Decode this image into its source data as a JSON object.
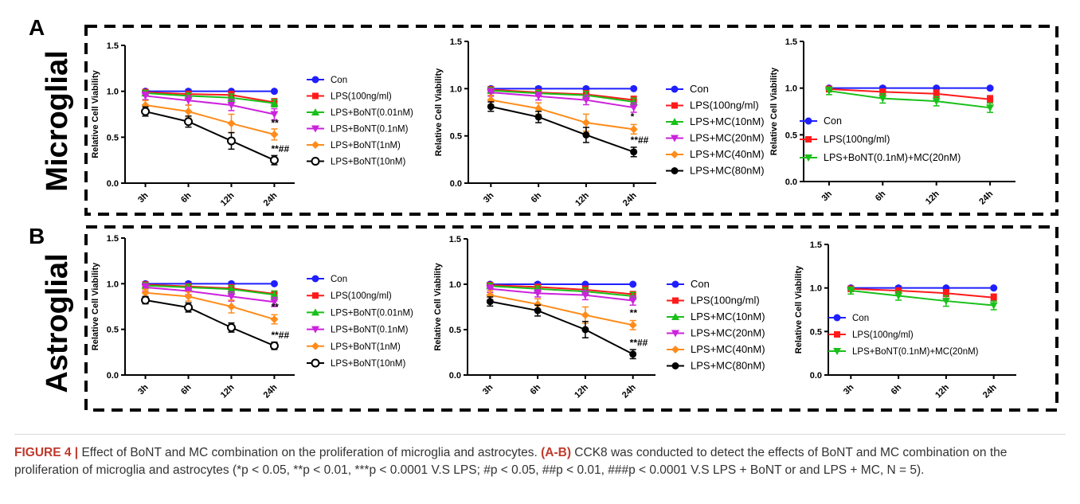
{
  "colors": {
    "con": "#1f1fff",
    "lps": "#ff1a1a",
    "g3": "#19c019",
    "g4": "#cc22dd",
    "g5": "#ff8c1a",
    "g6": "#000000"
  },
  "panel_labels": {
    "a": "A",
    "b": "B"
  },
  "row_labels": {
    "a": "Microglial",
    "b": "Astroglial"
  },
  "caption": {
    "figure_label": "FIGURE 4 |",
    "lead": " Effect of BoNT and MC combination on the proliferation of microglia and astrocytes. ",
    "ab": "(A-B)",
    "text_1": " CCK8 was conducted to detect the effects of BoNT and MC combination on the proliferation of microglia and astrocytes (*p < 0.05, **p < 0.01, ***p < 0.0001 V.S LPS; ",
    "text_2": "#p < 0.05, ##p < 0.01, ###p < 0.0001 V.S LPS + BoNT or and LPS + MC, N = 5)."
  },
  "chart_data": [
    {
      "type": "line",
      "row": "A",
      "col": 1,
      "ylabel": "Relative Cell Viability",
      "categories": [
        "3h",
        "6h",
        "12h",
        "24h"
      ],
      "ylim": [
        0,
        1.5
      ],
      "yticks": [
        "0.0",
        "0.5",
        "1.0",
        "1.5"
      ],
      "series": [
        {
          "name": "Con",
          "color": "con",
          "marker": "circle",
          "values": [
            1.0,
            1.0,
            1.0,
            1.0
          ],
          "err": [
            0.02,
            0.02,
            0.01,
            0.01
          ]
        },
        {
          "name": "LPS(100ng/ml)",
          "color": "lps",
          "marker": "square",
          "values": [
            0.99,
            0.97,
            0.96,
            0.88
          ],
          "err": [
            0.03,
            0.03,
            0.04,
            0.04
          ]
        },
        {
          "name": "LPS+BoNT(0.01nM)",
          "color": "g3",
          "marker": "triangle-up",
          "values": [
            0.98,
            0.95,
            0.93,
            0.87
          ],
          "err": [
            0.03,
            0.03,
            0.04,
            0.04
          ]
        },
        {
          "name": "LPS+BoNT(0.1nM)",
          "color": "g4",
          "marker": "triangle-down",
          "values": [
            0.95,
            0.9,
            0.85,
            0.75
          ],
          "err": [
            0.04,
            0.05,
            0.06,
            0.06
          ]
        },
        {
          "name": "LPS+BoNT(1nM)",
          "color": "g5",
          "marker": "diamond",
          "values": [
            0.85,
            0.78,
            0.65,
            0.53
          ],
          "err": [
            0.05,
            0.07,
            0.1,
            0.06
          ]
        },
        {
          "name": "LPS+BoNT(10nM)",
          "color": "g6",
          "marker": "circle-open",
          "values": [
            0.78,
            0.67,
            0.46,
            0.25
          ],
          "err": [
            0.05,
            0.06,
            0.09,
            0.05
          ]
        }
      ],
      "annotations": [
        {
          "text": "**",
          "x": "24h",
          "y": 0.62
        },
        {
          "text": "**##",
          "x": "24h",
          "y": 0.34
        }
      ]
    },
    {
      "type": "line",
      "row": "A",
      "col": 2,
      "ylabel": "Relative Cell Viability",
      "categories": [
        "3h",
        "6h",
        "12h",
        "24h"
      ],
      "ylim": [
        0,
        1.5
      ],
      "yticks": [
        "0.0",
        "0.5",
        "1.0",
        "1.5"
      ],
      "series": [
        {
          "name": "Con",
          "color": "con",
          "marker": "circle",
          "values": [
            1.0,
            1.0,
            1.0,
            1.0
          ],
          "err": [
            0.02,
            0.02,
            0.01,
            0.01
          ]
        },
        {
          "name": "LPS(100ng/ml)",
          "color": "lps",
          "marker": "square",
          "values": [
            0.99,
            0.96,
            0.94,
            0.88
          ],
          "err": [
            0.03,
            0.03,
            0.04,
            0.04
          ]
        },
        {
          "name": "LPS+MC(10nM)",
          "color": "g3",
          "marker": "triangle-up",
          "values": [
            0.98,
            0.95,
            0.93,
            0.86
          ],
          "err": [
            0.03,
            0.03,
            0.04,
            0.04
          ]
        },
        {
          "name": "LPS+MC(20nM)",
          "color": "g4",
          "marker": "triangle-down",
          "values": [
            0.96,
            0.92,
            0.88,
            0.8
          ],
          "err": [
            0.04,
            0.04,
            0.05,
            0.05
          ]
        },
        {
          "name": "LPS+MC(40nM)",
          "color": "g5",
          "marker": "diamond",
          "values": [
            0.88,
            0.79,
            0.64,
            0.57
          ],
          "err": [
            0.05,
            0.06,
            0.09,
            0.05
          ]
        },
        {
          "name": "LPS+MC(80nM)",
          "color": "g6",
          "marker": "circle-filled",
          "values": [
            0.81,
            0.7,
            0.51,
            0.33
          ],
          "err": [
            0.05,
            0.06,
            0.08,
            0.05
          ]
        }
      ],
      "annotations": [
        {
          "text": "*",
          "x": "24h",
          "y": 0.67
        },
        {
          "text": "**##",
          "x": "24h",
          "y": 0.42
        }
      ]
    },
    {
      "type": "line",
      "row": "A",
      "col": 3,
      "ylabel": "Relative Cell Viability",
      "categories": [
        "3h",
        "6h",
        "12h",
        "24h"
      ],
      "ylim": [
        0,
        1.5
      ],
      "yticks": [
        "0.0",
        "0.5",
        "1.0",
        "1.5"
      ],
      "series": [
        {
          "name": "Con",
          "color": "con",
          "marker": "circle",
          "values": [
            1.0,
            1.0,
            1.0,
            1.0
          ],
          "err": [
            0.02,
            0.02,
            0.01,
            0.01
          ]
        },
        {
          "name": "LPS(100ng/ml)",
          "color": "lps",
          "marker": "square",
          "values": [
            0.99,
            0.96,
            0.94,
            0.88
          ],
          "err": [
            0.03,
            0.03,
            0.04,
            0.04
          ]
        },
        {
          "name": "LPS+BoNT(0.1nM)+MC(20nM)",
          "color": "g3",
          "marker": "triangle-down",
          "values": [
            0.97,
            0.89,
            0.86,
            0.79
          ],
          "err": [
            0.04,
            0.05,
            0.05,
            0.05
          ]
        }
      ],
      "annotations": []
    },
    {
      "type": "line",
      "row": "B",
      "col": 1,
      "ylabel": "Relative Cell Viability",
      "categories": [
        "3h",
        "6h",
        "12h",
        "24h"
      ],
      "ylim": [
        0,
        1.5
      ],
      "yticks": [
        "0.0",
        "0.5",
        "1.0",
        "1.5"
      ],
      "series": [
        {
          "name": "Con",
          "color": "con",
          "marker": "circle",
          "values": [
            1.0,
            1.0,
            1.0,
            1.0
          ],
          "err": [
            0.02,
            0.02,
            0.01,
            0.01
          ]
        },
        {
          "name": "LPS(100ng/ml)",
          "color": "lps",
          "marker": "square",
          "values": [
            0.99,
            0.97,
            0.95,
            0.89
          ],
          "err": [
            0.03,
            0.03,
            0.04,
            0.03
          ]
        },
        {
          "name": "LPS+BoNT(0.01nM)",
          "color": "g3",
          "marker": "triangle-up",
          "values": [
            0.98,
            0.96,
            0.94,
            0.88
          ],
          "err": [
            0.03,
            0.03,
            0.04,
            0.04
          ]
        },
        {
          "name": "LPS+BoNT(0.1nM)",
          "color": "g4",
          "marker": "triangle-down",
          "values": [
            0.96,
            0.92,
            0.86,
            0.8
          ],
          "err": [
            0.04,
            0.04,
            0.05,
            0.05
          ]
        },
        {
          "name": "LPS+BoNT(1nM)",
          "color": "g5",
          "marker": "diamond",
          "values": [
            0.9,
            0.86,
            0.75,
            0.61
          ],
          "err": [
            0.04,
            0.05,
            0.07,
            0.05
          ]
        },
        {
          "name": "LPS+BoNT(10nM)",
          "color": "g6",
          "marker": "circle-open",
          "values": [
            0.82,
            0.74,
            0.52,
            0.32
          ],
          "err": [
            0.04,
            0.05,
            0.05,
            0.04
          ]
        }
      ],
      "annotations": [
        {
          "text": "**",
          "x": "24h",
          "y": 0.71
        },
        {
          "text": "**##",
          "x": "24h",
          "y": 0.4
        }
      ]
    },
    {
      "type": "line",
      "row": "B",
      "col": 2,
      "ylabel": "Relative Cell Viability",
      "categories": [
        "3h",
        "6h",
        "12h",
        "24h"
      ],
      "ylim": [
        0,
        1.5
      ],
      "yticks": [
        "0.0",
        "0.5",
        "1.0",
        "1.5"
      ],
      "series": [
        {
          "name": "Con",
          "color": "con",
          "marker": "circle",
          "values": [
            1.0,
            1.0,
            1.0,
            1.0
          ],
          "err": [
            0.02,
            0.02,
            0.01,
            0.01
          ]
        },
        {
          "name": "LPS(100ng/ml)",
          "color": "lps",
          "marker": "square",
          "values": [
            0.99,
            0.97,
            0.94,
            0.89
          ],
          "err": [
            0.03,
            0.03,
            0.04,
            0.03
          ]
        },
        {
          "name": "LPS+MC(10nM)",
          "color": "g3",
          "marker": "triangle-up",
          "values": [
            0.98,
            0.95,
            0.92,
            0.87
          ],
          "err": [
            0.03,
            0.03,
            0.04,
            0.04
          ]
        },
        {
          "name": "LPS+MC(20nM)",
          "color": "g4",
          "marker": "triangle-down",
          "values": [
            0.95,
            0.9,
            0.88,
            0.82
          ],
          "err": [
            0.04,
            0.04,
            0.05,
            0.05
          ]
        },
        {
          "name": "LPS+MC(40nM)",
          "color": "g5",
          "marker": "diamond",
          "values": [
            0.88,
            0.78,
            0.66,
            0.55
          ],
          "err": [
            0.05,
            0.06,
            0.09,
            0.05
          ]
        },
        {
          "name": "LPS+MC(80nM)",
          "color": "g6",
          "marker": "circle-filled",
          "values": [
            0.81,
            0.71,
            0.5,
            0.23
          ],
          "err": [
            0.05,
            0.06,
            0.09,
            0.05
          ]
        }
      ],
      "annotations": [
        {
          "text": "**",
          "x": "24h",
          "y": 0.65
        },
        {
          "text": "**##",
          "x": "24h",
          "y": 0.32
        }
      ]
    },
    {
      "type": "line",
      "row": "B",
      "col": 3,
      "ylabel": "Relative Cell Viability",
      "categories": [
        "3h",
        "6h",
        "12h",
        "24h"
      ],
      "ylim": [
        0,
        1.5
      ],
      "yticks": [
        "0.0",
        "0.5",
        "1.0",
        "1.5"
      ],
      "series": [
        {
          "name": "Con",
          "color": "con",
          "marker": "circle",
          "values": [
            1.0,
            1.0,
            1.0,
            1.0
          ],
          "err": [
            0.02,
            0.02,
            0.01,
            0.01
          ]
        },
        {
          "name": "LPS(100ng/ml)",
          "color": "lps",
          "marker": "square",
          "values": [
            0.99,
            0.97,
            0.94,
            0.89
          ],
          "err": [
            0.03,
            0.03,
            0.04,
            0.04
          ]
        },
        {
          "name": "LPS+BoNT(0.1nM)+MC(20nM)",
          "color": "g3",
          "marker": "triangle-down",
          "values": [
            0.97,
            0.91,
            0.85,
            0.8
          ],
          "err": [
            0.04,
            0.05,
            0.06,
            0.05
          ]
        }
      ],
      "annotations": []
    }
  ]
}
